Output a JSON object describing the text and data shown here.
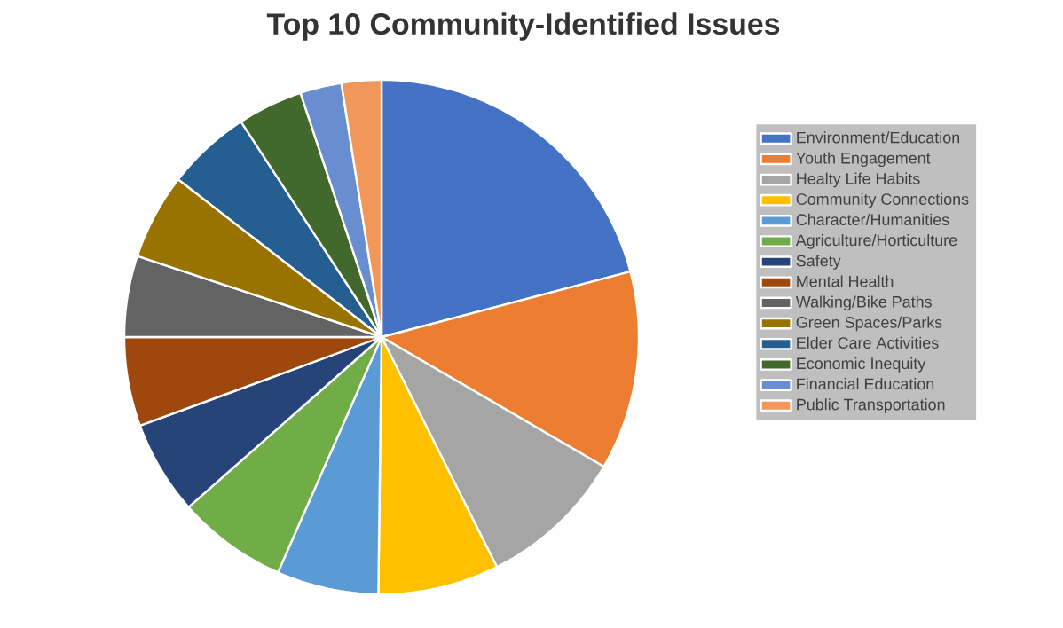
{
  "chart_data": {
    "type": "pie",
    "title": "Top 10 Community-Identified Issues",
    "categories": [
      "Environment/Education",
      "Youth Engagement",
      "Healty Life Habits",
      "Community Connections",
      "Character/Humanities",
      "Agriculture/Horticulture",
      "Safety",
      "Mental Health",
      "Walking/Bike Paths",
      "Green Spaces/Parks",
      "Elder Care Activities",
      "Economic Inequity",
      "Financial Education",
      "Public Transportation"
    ],
    "values": [
      20.9,
      12.5,
      9.2,
      7.6,
      6.4,
      6.9,
      5.9,
      5.6,
      5.1,
      5.4,
      5.3,
      4.1,
      2.6,
      2.5
    ],
    "colors": [
      "#4472c4",
      "#ed7d31",
      "#a5a5a5",
      "#ffc000",
      "#5b9bd5",
      "#70ad47",
      "#264478",
      "#9e480e",
      "#636363",
      "#997300",
      "#255e91",
      "#43682b",
      "#698ed0",
      "#f1975a"
    ],
    "legend": "right"
  }
}
